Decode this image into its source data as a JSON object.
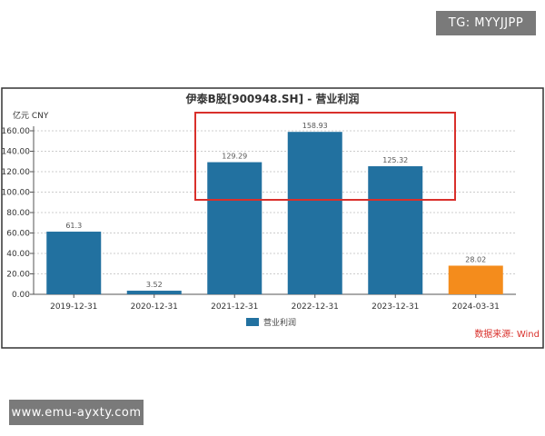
{
  "watermarks": {
    "top_right": "TG: MYYJJPP",
    "bottom_left": "www.emu-ayxty.com"
  },
  "chart_data": {
    "type": "bar",
    "title": "伊泰B股[900948.SH] - 营业利润",
    "ylabel": "亿元  CNY",
    "xlabel": "",
    "categories": [
      "2019-12-31",
      "2020-12-31",
      "2021-12-31",
      "2022-12-31",
      "2023-12-31",
      "2024-03-31"
    ],
    "series": [
      {
        "name": "营业利润",
        "values": [
          61.3,
          3.52,
          129.29,
          158.93,
          125.32,
          28.02
        ]
      }
    ],
    "data_labels": [
      "61.3",
      "3.52",
      "129.29",
      "158.93",
      "125.32",
      "28.02"
    ],
    "bar_colors": [
      "#2271a0",
      "#2271a0",
      "#2271a0",
      "#2271a0",
      "#2271a0",
      "#f48c1c"
    ],
    "ylim": [
      0,
      160
    ],
    "yticks": [
      "0.00",
      "20.00",
      "40.00",
      "60.00",
      "80.00",
      "100.00",
      "120.00",
      "140.00",
      "160.00"
    ],
    "grid": true,
    "legend": "bottom-center",
    "source": "数据来源: Wind",
    "highlight_box_categories": [
      "2021-12-31",
      "2022-12-31",
      "2023-12-31"
    ],
    "highlight_color": "#d9302b"
  }
}
